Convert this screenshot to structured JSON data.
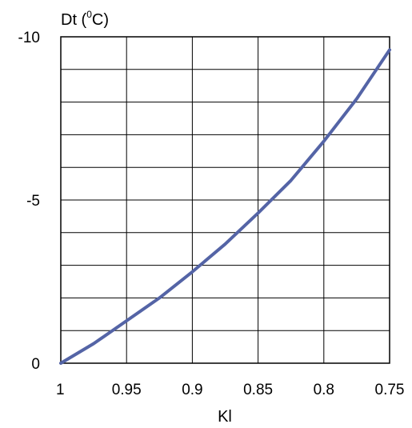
{
  "chart_data": {
    "type": "line",
    "title": "",
    "ylabel": {
      "prefix": "Dt (",
      "sup": "0",
      "suffix": "C)"
    },
    "xlabel": "Kl",
    "xlim": [
      1.0,
      0.75
    ],
    "ylim": [
      0,
      -10
    ],
    "x_ticks": [
      1.0,
      0.95,
      0.9,
      0.85,
      0.8,
      0.75
    ],
    "x_tick_labels": [
      "1",
      "0.95",
      "0.9",
      "0.85",
      "0.8",
      "0.75"
    ],
    "y_ticks": [
      0,
      -5,
      -10
    ],
    "y_tick_labels": [
      "0",
      "-5",
      "-10"
    ],
    "x_grid_step": 0.05,
    "y_grid_step": -1,
    "grid": true,
    "line_color": "#5464a6",
    "series": [
      {
        "x": [
          1.0,
          0.975,
          0.95,
          0.925,
          0.9,
          0.875,
          0.85,
          0.825,
          0.8,
          0.775,
          0.75
        ],
        "y": [
          0,
          -0.6,
          -1.3,
          -2.0,
          -2.8,
          -3.65,
          -4.6,
          -5.6,
          -6.8,
          -8.1,
          -9.6
        ]
      }
    ]
  }
}
